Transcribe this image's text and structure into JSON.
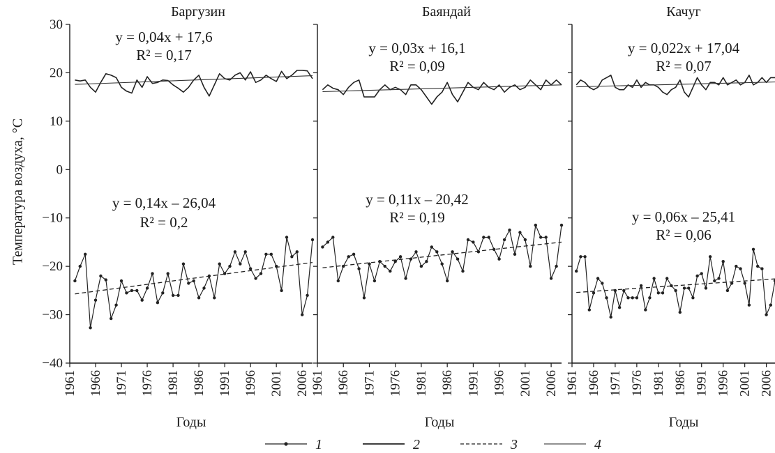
{
  "chart_data": {
    "type": "line",
    "y_axis_label": "Температура воздуха, °С",
    "y_ticks": [
      "30",
      "20",
      "10",
      "0",
      "−10",
      "−20",
      "−30",
      "−40"
    ],
    "y_tick_values": [
      30,
      20,
      10,
      0,
      -10,
      -20,
      -30,
      -40
    ],
    "ylim": [
      -40,
      30
    ],
    "xlim": [
      1961,
      2008
    ],
    "x_ticks": [
      "1961",
      "1966",
      "1971",
      "1976",
      "1981",
      "1986",
      "1991",
      "1996",
      "2001",
      "2006"
    ],
    "x_tick_values": [
      1961,
      1966,
      1971,
      1976,
      1981,
      1986,
      1991,
      1996,
      2001,
      2006
    ],
    "legend": [
      {
        "symbol": "dot-line",
        "label": "1"
      },
      {
        "symbol": "solid-line",
        "label": "2"
      },
      {
        "symbol": "dashed-line",
        "label": "3"
      },
      {
        "symbol": "thin-line",
        "label": "4"
      }
    ],
    "panels": [
      {
        "title": "Баргузин",
        "xlabel": "Годы",
        "summer_equation": "y = 0,04x + 17,6",
        "summer_r2": "R² = 0,17",
        "winter_equation": "y = 0,14x – 26,04",
        "winter_r2": "R² = 0,2",
        "years": [
          1962,
          1963,
          1964,
          1965,
          1966,
          1967,
          1968,
          1969,
          1970,
          1971,
          1972,
          1973,
          1974,
          1975,
          1976,
          1977,
          1978,
          1979,
          1980,
          1981,
          1982,
          1983,
          1984,
          1985,
          1986,
          1987,
          1988,
          1989,
          1990,
          1991,
          1992,
          1993,
          1994,
          1995,
          1996,
          1997,
          1998,
          1999,
          2000,
          2001,
          2002,
          2003,
          2004,
          2005,
          2006,
          2007,
          2008
        ],
        "summer": [
          18.5,
          18.3,
          18.5,
          17.0,
          16.0,
          18.0,
          19.8,
          19.5,
          19.0,
          17.0,
          16.2,
          15.8,
          18.5,
          17.0,
          19.2,
          17.8,
          18.0,
          18.5,
          18.4,
          17.5,
          16.8,
          16.0,
          17.0,
          18.5,
          19.5,
          17.0,
          15.2,
          17.5,
          19.8,
          18.8,
          18.5,
          19.5,
          20.0,
          18.5,
          20.2,
          18.0,
          18.5,
          19.5,
          18.8,
          18.2,
          20.3,
          18.8,
          19.5,
          20.5,
          20.5,
          20.4,
          18.8
        ],
        "summer_trend": [
          17.6,
          19.4
        ],
        "winter": [
          -23.0,
          -20.0,
          -17.5,
          -32.7,
          -27.0,
          -22.0,
          -22.8,
          -30.8,
          -28.0,
          -23.0,
          -25.5,
          -25.0,
          -25.0,
          -27.0,
          -24.5,
          -21.5,
          -27.5,
          -25.5,
          -21.5,
          -26.0,
          -26.0,
          -19.5,
          -23.5,
          -23.0,
          -26.5,
          -24.5,
          -22.0,
          -26.5,
          -19.5,
          -21.5,
          -20.0,
          -17.0,
          -19.5,
          -17.0,
          -20.5,
          -22.5,
          -21.5,
          -17.5,
          -17.5,
          -20.0,
          -25.0,
          -14.0,
          -18.0,
          -17.0,
          -30.0,
          -26.0,
          -14.5
        ],
        "winter_trend": [
          -25.7,
          -19.2
        ]
      },
      {
        "title": "Баяндай",
        "xlabel": "Годы",
        "summer_equation": "y = 0,03x + 16,1",
        "summer_r2": "R² = 0,09",
        "winter_equation": "y = 0,11x – 20,42",
        "winter_r2": "R² = 0,19",
        "years": [
          1962,
          1963,
          1964,
          1965,
          1966,
          1967,
          1968,
          1969,
          1970,
          1971,
          1972,
          1973,
          1974,
          1975,
          1976,
          1977,
          1978,
          1979,
          1980,
          1981,
          1982,
          1983,
          1984,
          1985,
          1986,
          1987,
          1988,
          1989,
          1990,
          1991,
          1992,
          1993,
          1994,
          1995,
          1996,
          1997,
          1998,
          1999,
          2000,
          2001,
          2002,
          2003,
          2004,
          2005,
          2006,
          2007,
          2008
        ],
        "summer": [
          16.5,
          17.5,
          16.8,
          16.5,
          15.5,
          17.0,
          18.0,
          18.5,
          15.0,
          15.0,
          15.0,
          16.5,
          17.5,
          16.5,
          17.0,
          16.5,
          15.5,
          17.5,
          17.5,
          16.5,
          15.0,
          13.5,
          15.0,
          16.0,
          18.0,
          15.5,
          14.0,
          16.0,
          18.0,
          17.0,
          16.5,
          18.0,
          17.0,
          16.5,
          17.5,
          16.0,
          17.0,
          17.5,
          16.5,
          17.0,
          18.5,
          17.5,
          16.5,
          18.5,
          17.5,
          18.5,
          17.5
        ],
        "summer_trend": [
          16.1,
          17.5
        ],
        "winter": [
          -16.0,
          -15.0,
          -14.0,
          -23.0,
          -20.0,
          -18.0,
          -17.5,
          -20.5,
          -26.5,
          -19.5,
          -23.0,
          -19.0,
          -20.0,
          -21.0,
          -19.0,
          -18.0,
          -22.5,
          -18.5,
          -17.0,
          -20.0,
          -19.0,
          -16.0,
          -17.0,
          -19.5,
          -23.0,
          -17.0,
          -18.5,
          -21.0,
          -14.5,
          -15.0,
          -17.0,
          -14.0,
          -14.0,
          -16.5,
          -18.5,
          -14.5,
          -12.5,
          -17.5,
          -13.0,
          -14.5,
          -20.0,
          -11.5,
          -14.0,
          -14.0,
          -22.5,
          -20.0,
          -11.5
        ],
        "winter_trend": [
          -20.3,
          -15.0
        ]
      },
      {
        "title": "Качуг",
        "xlabel": "Годы",
        "summer_equation": "y = 0,022x + 17,04",
        "summer_r2": "R² = 0,07",
        "winter_equation": "y = 0,06x – 25,41",
        "winter_r2": "R² = 0,06",
        "years": [
          1962,
          1963,
          1964,
          1965,
          1966,
          1967,
          1968,
          1969,
          1970,
          1971,
          1972,
          1973,
          1974,
          1975,
          1976,
          1977,
          1978,
          1979,
          1980,
          1981,
          1982,
          1983,
          1984,
          1985,
          1986,
          1987,
          1988,
          1989,
          1990,
          1991,
          1992,
          1993,
          1994,
          1995,
          1996,
          1997,
          1998,
          1999,
          2000,
          2001,
          2002,
          2003,
          2004,
          2005,
          2006,
          2007,
          2008
        ],
        "summer": [
          17.5,
          18.5,
          18.0,
          17.0,
          16.5,
          17.0,
          18.5,
          19.0,
          19.5,
          17.0,
          16.5,
          16.5,
          17.5,
          17.0,
          18.5,
          17.0,
          18.0,
          17.5,
          17.5,
          17.0,
          16.0,
          15.5,
          16.5,
          17.0,
          18.5,
          16.0,
          15.0,
          17.0,
          19.0,
          17.5,
          16.5,
          18.0,
          18.0,
          17.5,
          19.0,
          17.5,
          18.0,
          18.5,
          17.5,
          18.0,
          19.5,
          17.5,
          18.0,
          19.0,
          18.0,
          19.0,
          19.0
        ],
        "summer_trend": [
          17.1,
          18.1
        ],
        "winter": [
          -21.0,
          -18.0,
          -18.0,
          -29.0,
          -25.5,
          -22.5,
          -23.5,
          -26.5,
          -30.5,
          -25.0,
          -28.5,
          -25.0,
          -26.5,
          -26.5,
          -26.5,
          -24.0,
          -29.0,
          -26.5,
          -22.5,
          -25.5,
          -25.5,
          -22.5,
          -24.0,
          -25.0,
          -29.5,
          -24.5,
          -24.5,
          -26.5,
          -22.0,
          -21.5,
          -24.5,
          -18.0,
          -23.0,
          -22.5,
          -19.0,
          -25.0,
          -23.5,
          -20.0,
          -20.5,
          -23.5,
          -28.0,
          -16.5,
          -20.0,
          -20.5,
          -30.0,
          -28.0,
          -23.0
        ],
        "winter_trend": [
          -25.4,
          -22.6
        ]
      }
    ]
  }
}
